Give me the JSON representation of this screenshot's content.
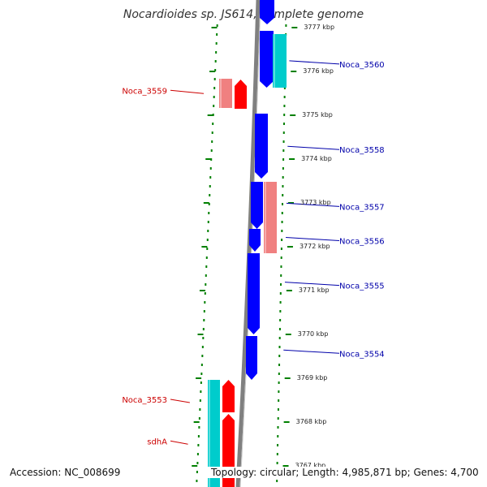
{
  "title": "Nocardioides sp. JS614, complete genome",
  "footer": {
    "accession": "Accession: NC_008699",
    "topology": "Topology: circular; Length: 4,985,871 bp; Genes: 4,700"
  },
  "colors": {
    "backbone": "#808080",
    "tick": "#008000",
    "forward_gene": "#0000ff",
    "reverse_gene": "#ff0000",
    "forward_feature": "#00cccc",
    "reverse_feature": "#f08080",
    "forward_label": "#0000aa",
    "reverse_label": "#cc0000"
  },
  "scale_labels": [
    {
      "kbp": 3777,
      "label": "3777 kbp"
    },
    {
      "kbp": 3776,
      "label": "3776 kbp"
    },
    {
      "kbp": 3775,
      "label": "3775 kbp"
    },
    {
      "kbp": 3774,
      "label": "3774 kbp"
    },
    {
      "kbp": 3773,
      "label": "3773 kbp"
    },
    {
      "kbp": 3772,
      "label": "3772 kbp"
    },
    {
      "kbp": 3771,
      "label": "3771 kbp"
    },
    {
      "kbp": 3770,
      "label": "3770 kbp"
    },
    {
      "kbp": 3769,
      "label": "3769 kbp"
    },
    {
      "kbp": 3768,
      "label": "3768 kbp"
    },
    {
      "kbp": 3767,
      "label": "3767 kbp"
    }
  ],
  "gene_labels": [
    {
      "name": "Noca_3560",
      "strand": "forward",
      "kbp": 3776.15
    },
    {
      "name": "Noca_3559",
      "strand": "reverse",
      "kbp": 3775.55
    },
    {
      "name": "Noca_3558",
      "strand": "forward",
      "kbp": 3774.2
    },
    {
      "name": "Noca_3557",
      "strand": "forward",
      "kbp": 3772.9
    },
    {
      "name": "Noca_3556",
      "strand": "forward",
      "kbp": 3772.12
    },
    {
      "name": "Noca_3555",
      "strand": "forward",
      "kbp": 3771.1
    },
    {
      "name": "Noca_3554",
      "strand": "forward",
      "kbp": 3769.55
    },
    {
      "name": "Noca_3553",
      "strand": "reverse",
      "kbp": 3768.5
    },
    {
      "name": "sdhA",
      "strand": "reverse",
      "kbp": 3767.55
    }
  ]
}
